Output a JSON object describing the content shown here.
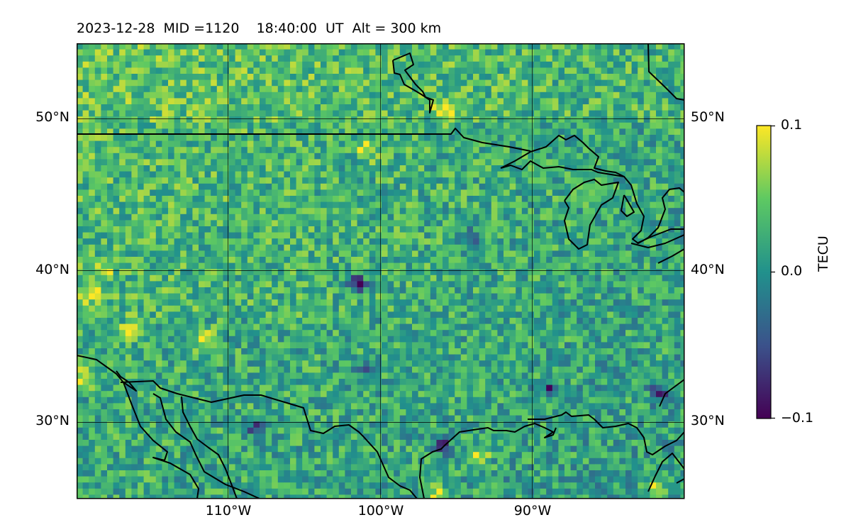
{
  "title": "2023-12-28  MID =1120    18:40:00  UT  Alt = 300 km",
  "map": {
    "lon_range": [
      -120,
      -80
    ],
    "lat_range": [
      25,
      55
    ],
    "lat_labels": [
      "50°N",
      "40°N",
      "30°N"
    ],
    "lon_labels": [
      "110°W",
      "100°W",
      "90°W"
    ]
  },
  "colorbar": {
    "label": "TECU",
    "ticks": [
      "0.1",
      "0.0",
      "−0.1"
    ],
    "range": [
      -0.1,
      0.1
    ],
    "colormap": "viridis",
    "colors": [
      "#440154",
      "#3b528b",
      "#21918c",
      "#5ec962",
      "#fde725"
    ]
  },
  "chart_data": {
    "type": "heatmap",
    "title": "2023-12-28  MID =1120    18:40:00  UT  Alt = 300 km",
    "xlabel": "",
    "ylabel": "",
    "colorbar_label": "TECU",
    "value_range": [
      -0.1,
      0.1
    ],
    "x_range_deg": [
      -120,
      -80
    ],
    "y_range_deg": [
      25,
      55
    ],
    "grid": true,
    "hotspots": [
      {
        "lon": -95.8,
        "lat": 50.6,
        "value": 0.1
      },
      {
        "lon": -119.5,
        "lat": 33.0,
        "value": 0.1
      },
      {
        "lon": -118.2,
        "lat": 40.0,
        "value": 0.08
      },
      {
        "lon": -111.5,
        "lat": 35.5,
        "value": 0.1
      },
      {
        "lon": -116.5,
        "lat": 36.0,
        "value": 0.09
      },
      {
        "lon": -96.2,
        "lat": 25.3,
        "value": 0.1
      },
      {
        "lon": -82.0,
        "lat": 25.8,
        "value": 0.1
      },
      {
        "lon": -100.8,
        "lat": 48.0,
        "value": 0.08
      },
      {
        "lon": -119.0,
        "lat": 38.5,
        "value": 0.09
      },
      {
        "lon": -93.5,
        "lat": 27.8,
        "value": 0.08
      }
    ],
    "coldspots": [
      {
        "lon": -101.5,
        "lat": 39.1,
        "value": -0.1
      },
      {
        "lon": -88.8,
        "lat": 32.2,
        "value": -0.09
      },
      {
        "lon": -96.0,
        "lat": 28.5,
        "value": -0.08
      },
      {
        "lon": -108.2,
        "lat": 29.6,
        "value": -0.08
      },
      {
        "lon": -81.5,
        "lat": 32.0,
        "value": -0.08
      },
      {
        "lon": -94.0,
        "lat": 42.0,
        "value": -0.07
      },
      {
        "lon": -101.0,
        "lat": 33.5,
        "value": -0.07
      }
    ]
  }
}
